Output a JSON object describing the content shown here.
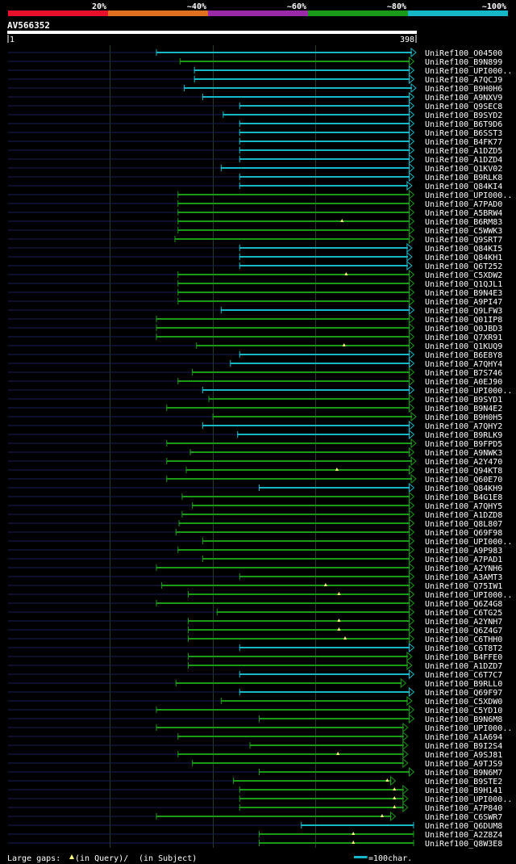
{
  "chart_data": {
    "type": "alignment-overview",
    "title": "AV566352",
    "query_start": 1,
    "query_end": 398,
    "legend": {
      "labels": [
        "20%",
        "~40%",
        "~60%",
        "~80%",
        "~100%"
      ],
      "colors": [
        "#e8102b",
        "#e07020",
        "#9a2aa8",
        "#1a9a18",
        "#16b8c8"
      ]
    },
    "footer": {
      "large_gaps_label": "Large gaps:",
      "in_query_text": "(in Query)/",
      "in_subject_text": "(in Subject)",
      "scale_text": "=100char.",
      "scale_units": 100
    },
    "hits": [
      {
        "name": "UniRef100_O04500",
        "start": 145,
        "end": 398,
        "color": "#16b8c8",
        "arrow": true,
        "marks": []
      },
      {
        "name": "UniRef100_B9N899",
        "start": 168,
        "end": 396,
        "color": "#1a9a18",
        "arrow": true,
        "marks": []
      },
      {
        "name": "UniRef100_UPI000..",
        "start": 182,
        "end": 396,
        "color": "#16b8c8",
        "arrow": true,
        "marks": []
      },
      {
        "name": "UniRef100_A7QCJ9",
        "start": 182,
        "end": 396,
        "color": "#16b8c8",
        "arrow": true,
        "marks": []
      },
      {
        "name": "UniRef100_B9H0H6",
        "start": 172,
        "end": 398,
        "color": "#16b8c8",
        "arrow": true,
        "marks": []
      },
      {
        "name": "UniRef100_A9NXV9",
        "start": 190,
        "end": 396,
        "color": "#16b8c8",
        "arrow": true,
        "marks": []
      },
      {
        "name": "UniRef100_Q9SEC8",
        "start": 226,
        "end": 396,
        "color": "#16b8c8",
        "arrow": true,
        "marks": []
      },
      {
        "name": "UniRef100_B9SYD2",
        "start": 210,
        "end": 396,
        "color": "#16b8c8",
        "arrow": true,
        "marks": []
      },
      {
        "name": "UniRef100_B6T9D6",
        "start": 226,
        "end": 396,
        "color": "#16b8c8",
        "arrow": true,
        "marks": []
      },
      {
        "name": "UniRef100_B6SST3",
        "start": 226,
        "end": 396,
        "color": "#16b8c8",
        "arrow": true,
        "marks": []
      },
      {
        "name": "UniRef100_B4FK77",
        "start": 226,
        "end": 396,
        "color": "#16b8c8",
        "arrow": true,
        "marks": []
      },
      {
        "name": "UniRef100_A1DZD5",
        "start": 226,
        "end": 396,
        "color": "#16b8c8",
        "arrow": true,
        "marks": []
      },
      {
        "name": "UniRef100_A1DZD4",
        "start": 226,
        "end": 396,
        "color": "#16b8c8",
        "arrow": true,
        "marks": []
      },
      {
        "name": "UniRef100_Q1KV02",
        "start": 208,
        "end": 396,
        "color": "#16b8c8",
        "arrow": true,
        "marks": []
      },
      {
        "name": "UniRef100_B9RLK8",
        "start": 226,
        "end": 396,
        "color": "#16b8c8",
        "arrow": true,
        "marks": []
      },
      {
        "name": "UniRef100_Q84KI4",
        "start": 226,
        "end": 394,
        "color": "#16b8c8",
        "arrow": true,
        "marks": []
      },
      {
        "name": "UniRef100_UPI000..",
        "start": 166,
        "end": 396,
        "color": "#1a9a18",
        "arrow": true,
        "marks": []
      },
      {
        "name": "UniRef100_A7PAD0",
        "start": 166,
        "end": 396,
        "color": "#1a9a18",
        "arrow": true,
        "marks": []
      },
      {
        "name": "UniRef100_A5BRW4",
        "start": 166,
        "end": 396,
        "color": "#1a9a18",
        "arrow": true,
        "marks": []
      },
      {
        "name": "UniRef100_B6RM83",
        "start": 166,
        "end": 396,
        "color": "#1a9a18",
        "arrow": true,
        "marks": [
          {
            "pos": 326,
            "type": "query"
          }
        ]
      },
      {
        "name": "UniRef100_C5WWK3",
        "start": 166,
        "end": 396,
        "color": "#1a9a18",
        "arrow": true,
        "marks": []
      },
      {
        "name": "UniRef100_Q9SRT7",
        "start": 163,
        "end": 396,
        "color": "#1a9a18",
        "arrow": true,
        "marks": []
      },
      {
        "name": "UniRef100_Q84KI5",
        "start": 226,
        "end": 394,
        "color": "#16b8c8",
        "arrow": true,
        "marks": []
      },
      {
        "name": "UniRef100_Q84KH1",
        "start": 226,
        "end": 394,
        "color": "#16b8c8",
        "arrow": true,
        "marks": []
      },
      {
        "name": "UniRef100_Q6T252",
        "start": 226,
        "end": 394,
        "color": "#16b8c8",
        "arrow": true,
        "marks": []
      },
      {
        "name": "UniRef100_C5XDW2",
        "start": 166,
        "end": 396,
        "color": "#1a9a18",
        "arrow": true,
        "marks": [
          {
            "pos": 330,
            "type": "query"
          }
        ]
      },
      {
        "name": "UniRef100_Q1QJL1",
        "start": 166,
        "end": 396,
        "color": "#1a9a18",
        "arrow": true,
        "marks": []
      },
      {
        "name": "UniRef100_B9N4E3",
        "start": 166,
        "end": 396,
        "color": "#1a9a18",
        "arrow": true,
        "marks": []
      },
      {
        "name": "UniRef100_A9PI47",
        "start": 166,
        "end": 396,
        "color": "#1a9a18",
        "arrow": true,
        "marks": []
      },
      {
        "name": "UniRef100_Q9LFW3",
        "start": 208,
        "end": 396,
        "color": "#16b8c8",
        "arrow": true,
        "marks": []
      },
      {
        "name": "UniRef100_Q01IP8",
        "start": 145,
        "end": 396,
        "color": "#1a9a18",
        "arrow": true,
        "marks": []
      },
      {
        "name": "UniRef100_Q0JBD3",
        "start": 145,
        "end": 396,
        "color": "#1a9a18",
        "arrow": true,
        "marks": []
      },
      {
        "name": "UniRef100_Q7XR91",
        "start": 145,
        "end": 396,
        "color": "#1a9a18",
        "arrow": true,
        "marks": []
      },
      {
        "name": "UniRef100_Q1KUQ9",
        "start": 184,
        "end": 396,
        "color": "#1a9a18",
        "arrow": true,
        "marks": [
          {
            "pos": 328,
            "type": "query"
          }
        ]
      },
      {
        "name": "UniRef100_B6E8Y8",
        "start": 226,
        "end": 396,
        "color": "#16b8c8",
        "arrow": true,
        "marks": []
      },
      {
        "name": "UniRef100_A7QHY4",
        "start": 217,
        "end": 396,
        "color": "#16b8c8",
        "arrow": true,
        "marks": []
      },
      {
        "name": "UniRef100_B7S746",
        "start": 180,
        "end": 396,
        "color": "#1a9a18",
        "arrow": true,
        "marks": []
      },
      {
        "name": "UniRef100_A0EJ90",
        "start": 166,
        "end": 396,
        "color": "#1a9a18",
        "arrow": true,
        "marks": []
      },
      {
        "name": "UniRef100_UPI000..",
        "start": 190,
        "end": 396,
        "color": "#16b8c8",
        "arrow": true,
        "marks": []
      },
      {
        "name": "UniRef100_B9SYD1",
        "start": 196,
        "end": 396,
        "color": "#1a9a18",
        "arrow": true,
        "marks": []
      },
      {
        "name": "UniRef100_B9N4E2",
        "start": 155,
        "end": 396,
        "color": "#1a9a18",
        "arrow": true,
        "marks": []
      },
      {
        "name": "UniRef100_B9H0H5",
        "start": 200,
        "end": 398,
        "color": "#1a9a18",
        "arrow": true,
        "marks": []
      },
      {
        "name": "UniRef100_A7QHY2",
        "start": 190,
        "end": 396,
        "color": "#16b8c8",
        "arrow": true,
        "marks": []
      },
      {
        "name": "UniRef100_B9RLK9",
        "start": 224,
        "end": 396,
        "color": "#16b8c8",
        "arrow": true,
        "marks": []
      },
      {
        "name": "UniRef100_B9FPD5",
        "start": 155,
        "end": 398,
        "color": "#1a9a18",
        "arrow": true,
        "marks": []
      },
      {
        "name": "UniRef100_A9NWK3",
        "start": 178,
        "end": 396,
        "color": "#1a9a18",
        "arrow": true,
        "marks": []
      },
      {
        "name": "UniRef100_A2Y470",
        "start": 155,
        "end": 398,
        "color": "#1a9a18",
        "arrow": true,
        "marks": []
      },
      {
        "name": "UniRef100_Q94KT8",
        "start": 174,
        "end": 396,
        "color": "#1a9a18",
        "arrow": true,
        "marks": [
          {
            "pos": 321,
            "type": "query"
          }
        ]
      },
      {
        "name": "UniRef100_Q60E70",
        "start": 155,
        "end": 398,
        "color": "#1a9a18",
        "arrow": true,
        "marks": []
      },
      {
        "name": "UniRef100_Q84KH9",
        "start": 245,
        "end": 396,
        "color": "#16b8c8",
        "arrow": true,
        "marks": []
      },
      {
        "name": "UniRef100_B4G1E8",
        "start": 170,
        "end": 396,
        "color": "#1a9a18",
        "arrow": true,
        "marks": []
      },
      {
        "name": "UniRef100_A7QHY5",
        "start": 180,
        "end": 396,
        "color": "#1a9a18",
        "arrow": true,
        "marks": []
      },
      {
        "name": "UniRef100_A1DZD8",
        "start": 170,
        "end": 396,
        "color": "#1a9a18",
        "arrow": true,
        "marks": []
      },
      {
        "name": "UniRef100_Q8L807",
        "start": 167,
        "end": 396,
        "color": "#1a9a18",
        "arrow": true,
        "marks": []
      },
      {
        "name": "UniRef100_Q69F98",
        "start": 164,
        "end": 396,
        "color": "#1a9a18",
        "arrow": true,
        "marks": []
      },
      {
        "name": "UniRef100_UPI000..",
        "start": 190,
        "end": 396,
        "color": "#1a9a18",
        "arrow": true,
        "marks": []
      },
      {
        "name": "UniRef100_A9P983",
        "start": 166,
        "end": 396,
        "color": "#1a9a18",
        "arrow": true,
        "marks": []
      },
      {
        "name": "UniRef100_A7PAD1",
        "start": 190,
        "end": 396,
        "color": "#1a9a18",
        "arrow": true,
        "marks": []
      },
      {
        "name": "UniRef100_A2YNH6",
        "start": 145,
        "end": 396,
        "color": "#1a9a18",
        "arrow": true,
        "marks": []
      },
      {
        "name": "UniRef100_A3AMT3",
        "start": 226,
        "end": 396,
        "color": "#1a9a18",
        "arrow": true,
        "marks": []
      },
      {
        "name": "UniRef100_Q75IW1",
        "start": 150,
        "end": 396,
        "color": "#1a9a18",
        "arrow": true,
        "marks": [
          {
            "pos": 310,
            "type": "query"
          }
        ]
      },
      {
        "name": "UniRef100_UPI000..",
        "start": 176,
        "end": 396,
        "color": "#1a9a18",
        "arrow": true,
        "marks": [
          {
            "pos": 323,
            "type": "query"
          }
        ]
      },
      {
        "name": "UniRef100_Q6Z4G8",
        "start": 145,
        "end": 396,
        "color": "#1a9a18",
        "arrow": true,
        "marks": []
      },
      {
        "name": "UniRef100_C6TG25",
        "start": 204,
        "end": 396,
        "color": "#1a9a18",
        "arrow": true,
        "marks": []
      },
      {
        "name": "UniRef100_A2YNH7",
        "start": 176,
        "end": 396,
        "color": "#1a9a18",
        "arrow": true,
        "marks": [
          {
            "pos": 323,
            "type": "query"
          }
        ]
      },
      {
        "name": "UniRef100_Q6Z4G7",
        "start": 176,
        "end": 396,
        "color": "#1a9a18",
        "arrow": true,
        "marks": [
          {
            "pos": 323,
            "type": "query"
          }
        ]
      },
      {
        "name": "UniRef100_C6THH0",
        "start": 176,
        "end": 396,
        "color": "#1a9a18",
        "arrow": true,
        "marks": [
          {
            "pos": 329,
            "type": "query"
          }
        ]
      },
      {
        "name": "UniRef100_C6T8T2",
        "start": 226,
        "end": 396,
        "color": "#16b8c8",
        "arrow": true,
        "marks": []
      },
      {
        "name": "UniRef100_B4FFE0",
        "start": 176,
        "end": 394,
        "color": "#1a9a18",
        "arrow": true,
        "marks": []
      },
      {
        "name": "UniRef100_A1DZD7",
        "start": 176,
        "end": 394,
        "color": "#1a9a18",
        "arrow": true,
        "marks": []
      },
      {
        "name": "UniRef100_C6T7C7",
        "start": 226,
        "end": 396,
        "color": "#16b8c8",
        "arrow": true,
        "marks": []
      },
      {
        "name": "UniRef100_B9RLL0",
        "start": 164,
        "end": 388,
        "color": "#1a9a18",
        "arrow": true,
        "marks": []
      },
      {
        "name": "UniRef100_Q69F97",
        "start": 226,
        "end": 396,
        "color": "#16b8c8",
        "arrow": true,
        "marks": []
      },
      {
        "name": "UniRef100_C5XDW0",
        "start": 208,
        "end": 394,
        "color": "#1a9a18",
        "arrow": true,
        "marks": []
      },
      {
        "name": "UniRef100_C5YD10",
        "start": 145,
        "end": 396,
        "color": "#1a9a18",
        "arrow": true,
        "marks": []
      },
      {
        "name": "UniRef100_B9N6M8",
        "start": 245,
        "end": 396,
        "color": "#1a9a18",
        "arrow": true,
        "marks": []
      },
      {
        "name": "UniRef100_UPI000..",
        "start": 145,
        "end": 390,
        "color": "#1a9a18",
        "arrow": true,
        "marks": []
      },
      {
        "name": "UniRef100_A1A694",
        "start": 166,
        "end": 390,
        "color": "#1a9a18",
        "arrow": true,
        "marks": []
      },
      {
        "name": "UniRef100_B9I2S4",
        "start": 236,
        "end": 390,
        "color": "#1a9a18",
        "arrow": true,
        "marks": []
      },
      {
        "name": "UniRef100_A9SJ81",
        "start": 166,
        "end": 390,
        "color": "#1a9a18",
        "arrow": true,
        "marks": [
          {
            "pos": 322,
            "type": "query"
          }
        ]
      },
      {
        "name": "UniRef100_A9TJS9",
        "start": 180,
        "end": 390,
        "color": "#1a9a18",
        "arrow": true,
        "marks": []
      },
      {
        "name": "UniRef100_B9N6M7",
        "start": 245,
        "end": 396,
        "color": "#1a9a18",
        "arrow": true,
        "marks": []
      },
      {
        "name": "UniRef100_B9STE2",
        "start": 220,
        "end": 378,
        "color": "#1a9a18",
        "arrow": true,
        "marks": [
          {
            "pos": 370,
            "type": "query"
          }
        ]
      },
      {
        "name": "UniRef100_B9H141",
        "start": 226,
        "end": 390,
        "color": "#1a9a18",
        "arrow": true,
        "marks": [
          {
            "pos": 377,
            "type": "query"
          }
        ]
      },
      {
        "name": "UniRef100_UPI000..",
        "start": 226,
        "end": 390,
        "color": "#1a9a18",
        "arrow": true,
        "marks": [
          {
            "pos": 377,
            "type": "query"
          }
        ]
      },
      {
        "name": "UniRef100_A7P840",
        "start": 226,
        "end": 390,
        "color": "#1a9a18",
        "arrow": true,
        "marks": [
          {
            "pos": 377,
            "type": "query"
          }
        ]
      },
      {
        "name": "UniRef100_C6SWR7",
        "start": 145,
        "end": 378,
        "color": "#1a9a18",
        "arrow": true,
        "marks": [
          {
            "pos": 365,
            "type": "query"
          }
        ]
      },
      {
        "name": "UniRef100_Q6DUM8",
        "start": 286,
        "end": 396,
        "color": "#16b8c8",
        "arrow": false,
        "marks": []
      },
      {
        "name": "UniRef100_A2Z8Z4",
        "start": 245,
        "end": 396,
        "color": "#1a9a18",
        "arrow": false,
        "marks": [
          {
            "pos": 337,
            "type": "query"
          }
        ]
      },
      {
        "name": "UniRef100_Q8W3E8",
        "start": 245,
        "end": 396,
        "color": "#1a9a18",
        "arrow": false,
        "marks": [
          {
            "pos": 337,
            "type": "query"
          }
        ]
      }
    ]
  }
}
